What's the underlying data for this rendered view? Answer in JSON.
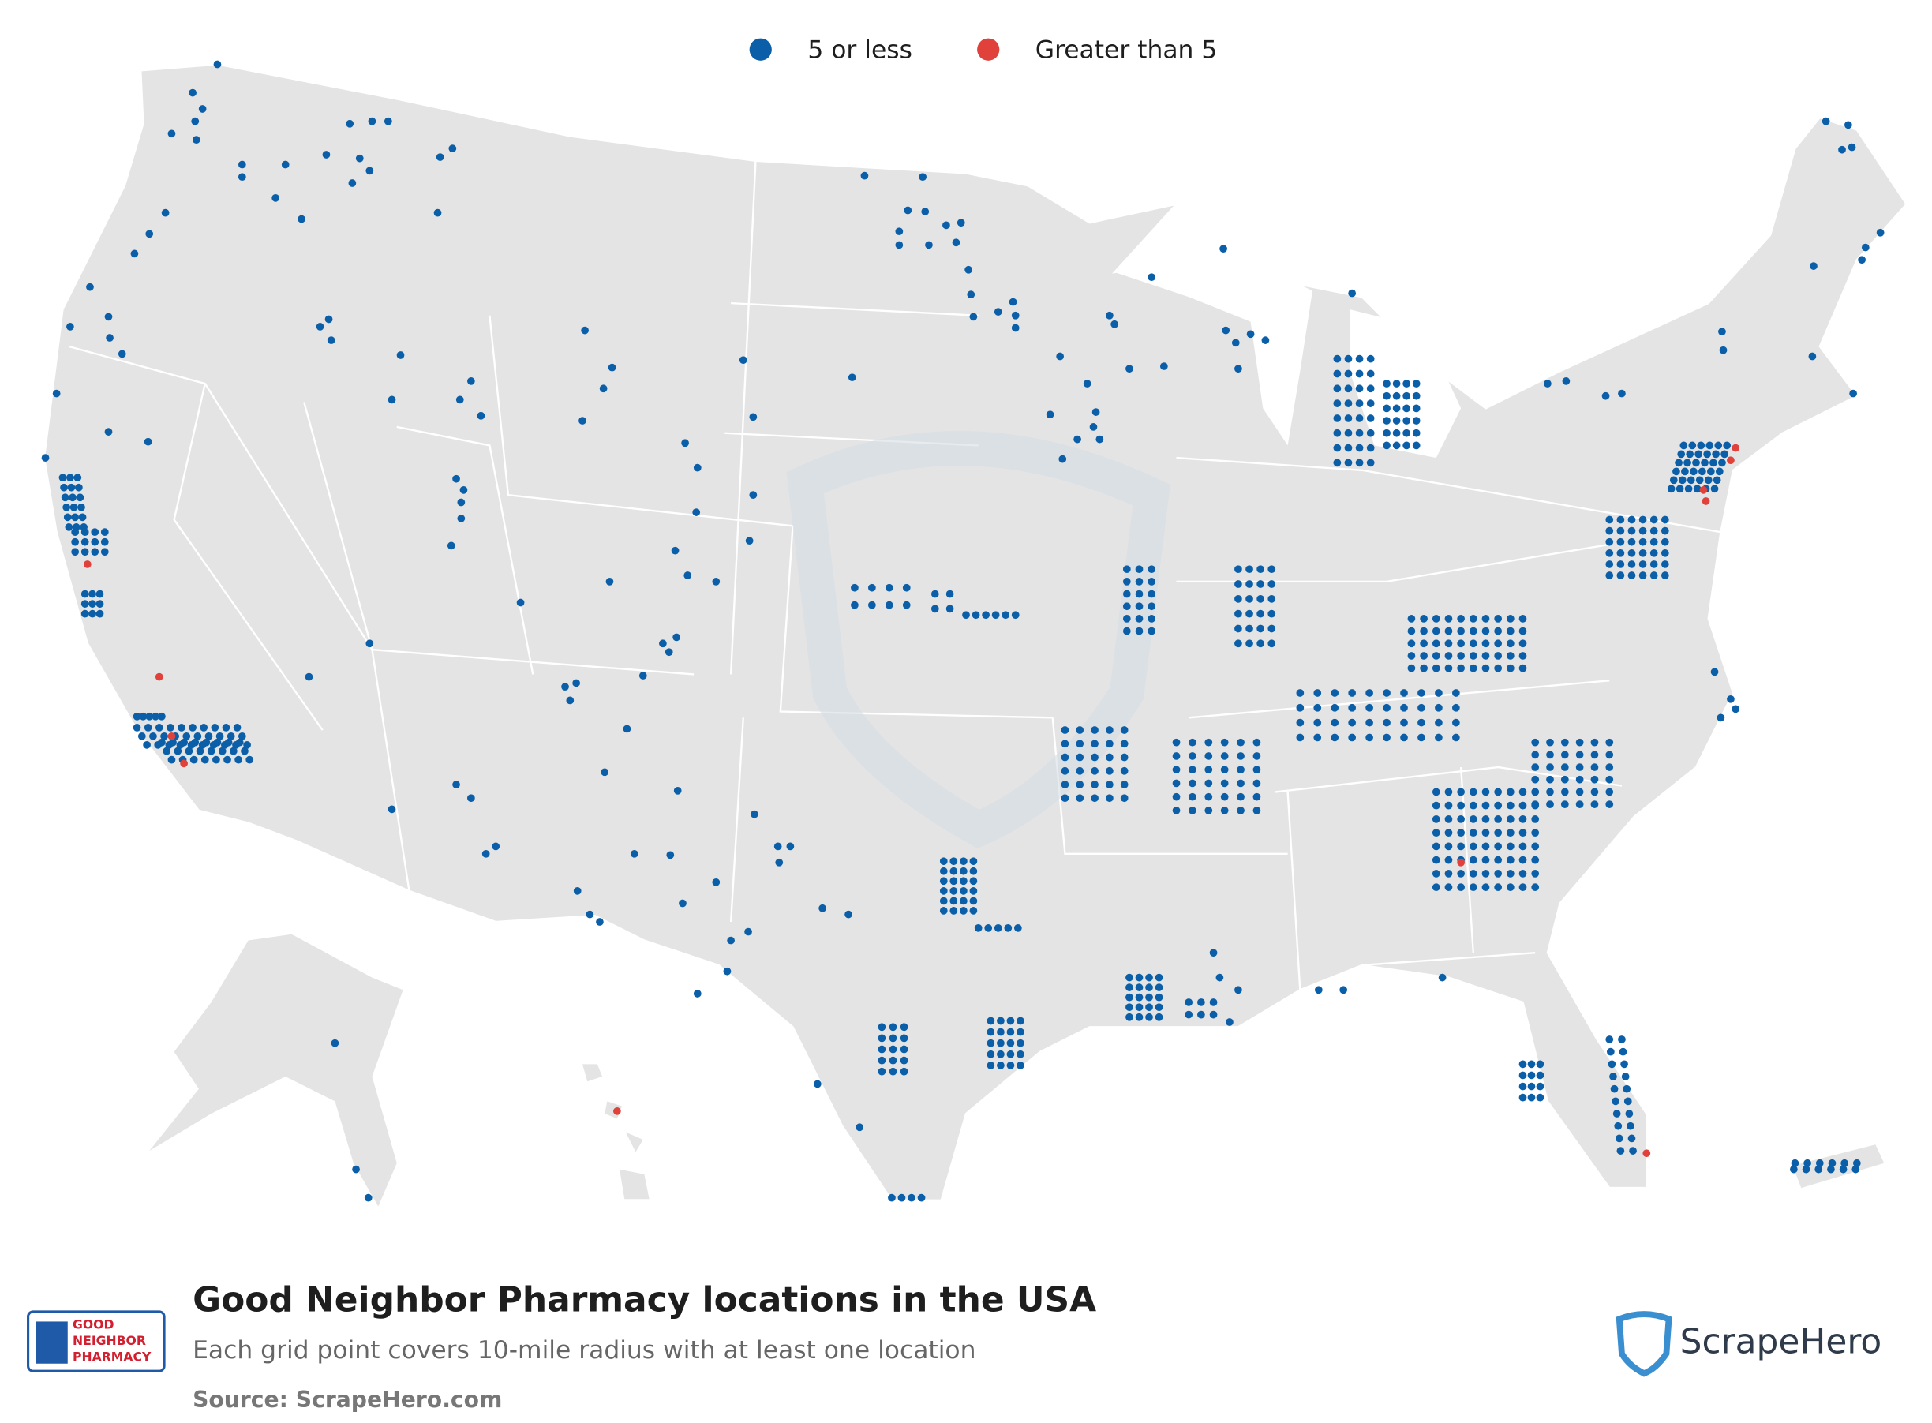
{
  "legend": {
    "items": [
      {
        "label": "5 or less",
        "color": "#0a5fa8"
      },
      {
        "label": "Greater than 5",
        "color": "#e0413a"
      }
    ]
  },
  "title": "Good Neighbor Pharmacy locations in the USA",
  "subtitle": "Each grid point covers 10-mile radius with at least one location",
  "source": "Source: ScrapeHero.com",
  "logo": {
    "lines": [
      "GOOD",
      "NEIGHBOR",
      "PHARMACY"
    ]
  },
  "brand": "ScrapeHero"
}
